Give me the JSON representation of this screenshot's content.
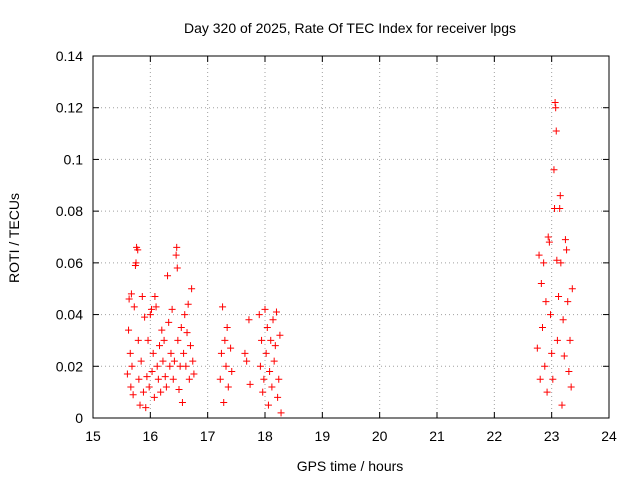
{
  "chart_data": {
    "type": "scatter",
    "title": "Day 320 of 2025, Rate Of TEC Index for receiver lpgs",
    "xlabel": "GPS time / hours",
    "ylabel": "ROTI / TECUs",
    "xlim": [
      15,
      24
    ],
    "ylim": [
      0,
      0.14
    ],
    "x_ticks": [
      "15",
      "16",
      "17",
      "18",
      "19",
      "20",
      "21",
      "22",
      "23",
      "24"
    ],
    "y_ticks": [
      "0",
      "0.02",
      "0.04",
      "0.06",
      "0.08",
      "0.1",
      "0.12",
      "0.14"
    ],
    "grid": true,
    "legend": "none",
    "marker": "plus",
    "color": "#ff0000",
    "series": [
      {
        "points": [
          [
            15.6,
            0.017
          ],
          [
            15.62,
            0.034
          ],
          [
            15.63,
            0.046
          ],
          [
            15.65,
            0.025
          ],
          [
            15.66,
            0.012
          ],
          [
            15.67,
            0.048
          ],
          [
            15.68,
            0.02
          ],
          [
            15.7,
            0.009
          ],
          [
            15.72,
            0.043
          ],
          [
            15.74,
            0.059
          ],
          [
            15.75,
            0.06
          ],
          [
            15.76,
            0.066
          ],
          [
            15.78,
            0.065
          ],
          [
            15.79,
            0.03
          ],
          [
            15.8,
            0.015
          ],
          [
            15.82,
            0.005
          ],
          [
            15.84,
            0.022
          ],
          [
            15.86,
            0.047
          ],
          [
            15.88,
            0.01
          ],
          [
            15.9,
            0.039
          ],
          [
            15.92,
            0.004
          ],
          [
            15.94,
            0.016
          ],
          [
            15.96,
            0.03
          ],
          [
            15.98,
            0.012
          ],
          [
            16.0,
            0.04
          ],
          [
            16.02,
            0.042
          ],
          [
            16.03,
            0.018
          ],
          [
            16.05,
            0.025
          ],
          [
            16.07,
            0.008
          ],
          [
            16.08,
            0.047
          ],
          [
            16.1,
            0.043
          ],
          [
            16.12,
            0.02
          ],
          [
            16.14,
            0.015
          ],
          [
            16.16,
            0.028
          ],
          [
            16.18,
            0.01
          ],
          [
            16.2,
            0.034
          ],
          [
            16.22,
            0.022
          ],
          [
            16.24,
            0.03
          ],
          [
            16.26,
            0.016
          ],
          [
            16.28,
            0.012
          ],
          [
            16.3,
            0.055
          ],
          [
            16.32,
            0.037
          ],
          [
            16.34,
            0.02
          ],
          [
            16.36,
            0.025
          ],
          [
            16.38,
            0.042
          ],
          [
            16.4,
            0.015
          ],
          [
            16.42,
            0.022
          ],
          [
            16.45,
            0.063
          ],
          [
            16.46,
            0.066
          ],
          [
            16.47,
            0.058
          ],
          [
            16.48,
            0.03
          ],
          [
            16.5,
            0.011
          ],
          [
            16.52,
            0.02
          ],
          [
            16.54,
            0.035
          ],
          [
            16.56,
            0.006
          ],
          [
            16.58,
            0.025
          ],
          [
            16.6,
            0.04
          ],
          [
            16.62,
            0.02
          ],
          [
            16.64,
            0.033
          ],
          [
            16.66,
            0.044
          ],
          [
            16.68,
            0.015
          ],
          [
            16.7,
            0.028
          ],
          [
            16.72,
            0.05
          ],
          [
            16.74,
            0.022
          ],
          [
            16.76,
            0.017
          ],
          [
            17.22,
            0.015
          ],
          [
            17.24,
            0.025
          ],
          [
            17.26,
            0.043
          ],
          [
            17.28,
            0.006
          ],
          [
            17.3,
            0.03
          ],
          [
            17.32,
            0.02
          ],
          [
            17.34,
            0.035
          ],
          [
            17.36,
            0.012
          ],
          [
            17.4,
            0.027
          ],
          [
            17.42,
            0.018
          ],
          [
            17.65,
            0.025
          ],
          [
            17.68,
            0.022
          ],
          [
            17.72,
            0.038
          ],
          [
            17.74,
            0.013
          ],
          [
            17.9,
            0.04
          ],
          [
            17.92,
            0.02
          ],
          [
            17.94,
            0.03
          ],
          [
            17.96,
            0.01
          ],
          [
            17.98,
            0.015
          ],
          [
            18.0,
            0.042
          ],
          [
            18.02,
            0.025
          ],
          [
            18.04,
            0.035
          ],
          [
            18.06,
            0.005
          ],
          [
            18.08,
            0.018
          ],
          [
            18.1,
            0.03
          ],
          [
            18.12,
            0.012
          ],
          [
            18.14,
            0.038
          ],
          [
            18.16,
            0.022
          ],
          [
            18.18,
            0.028
          ],
          [
            18.2,
            0.041
          ],
          [
            18.22,
            0.008
          ],
          [
            18.24,
            0.015
          ],
          [
            18.26,
            0.032
          ],
          [
            18.28,
            0.002
          ],
          [
            22.75,
            0.027
          ],
          [
            22.78,
            0.063
          ],
          [
            22.8,
            0.015
          ],
          [
            22.82,
            0.052
          ],
          [
            22.84,
            0.035
          ],
          [
            22.86,
            0.06
          ],
          [
            22.88,
            0.02
          ],
          [
            22.9,
            0.045
          ],
          [
            22.92,
            0.01
          ],
          [
            22.94,
            0.07
          ],
          [
            22.96,
            0.068
          ],
          [
            22.98,
            0.04
          ],
          [
            23.0,
            0.025
          ],
          [
            23.02,
            0.015
          ],
          [
            23.04,
            0.096
          ],
          [
            23.05,
            0.081
          ],
          [
            23.06,
            0.122
          ],
          [
            23.07,
            0.12
          ],
          [
            23.08,
            0.111
          ],
          [
            23.09,
            0.061
          ],
          [
            23.1,
            0.03
          ],
          [
            23.12,
            0.047
          ],
          [
            23.14,
            0.081
          ],
          [
            23.15,
            0.086
          ],
          [
            23.16,
            0.06
          ],
          [
            23.18,
            0.005
          ],
          [
            23.2,
            0.038
          ],
          [
            23.22,
            0.024
          ],
          [
            23.24,
            0.069
          ],
          [
            23.26,
            0.065
          ],
          [
            23.28,
            0.045
          ],
          [
            23.3,
            0.018
          ],
          [
            23.32,
            0.03
          ],
          [
            23.34,
            0.012
          ],
          [
            23.36,
            0.05
          ]
        ]
      }
    ]
  }
}
